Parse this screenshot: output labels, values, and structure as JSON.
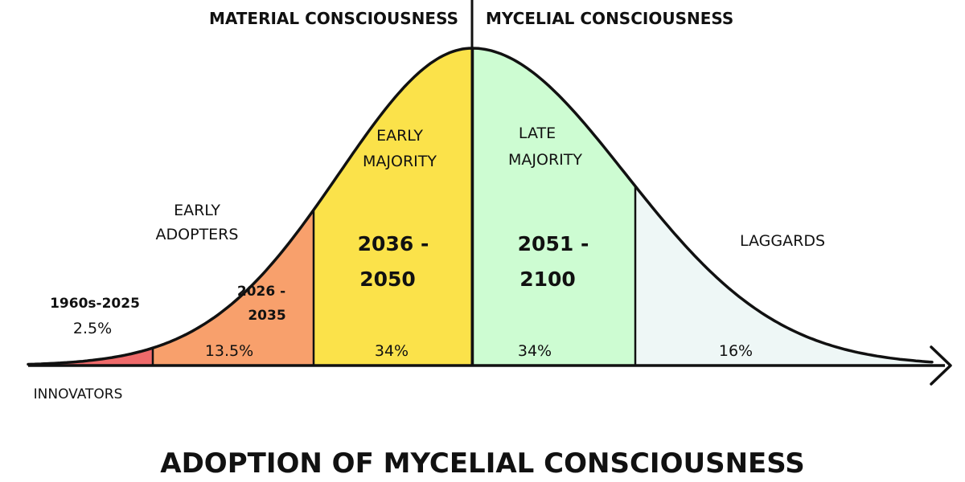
{
  "title": "ADOPTION OF MYCELIAL CONSCIOUSNESS",
  "divider": {
    "left_label": "MATERIAL CONSCIOUSNESS",
    "right_label": "MYCELIAL CONSCIOUSNESS"
  },
  "segments": [
    {
      "name": "INNOVATORS",
      "years": "1960s-2025",
      "percent": "2.5%",
      "value": 2.5,
      "color": "#ef6a6a"
    },
    {
      "name_line1": "EARLY",
      "name_line2": "ADOPTERS",
      "years_line1": "2026 -",
      "years_line2": "2035",
      "percent": "13.5%",
      "value": 13.5,
      "color": "#f8a06c"
    },
    {
      "name_line1": "EARLY",
      "name_line2": "MAJORITY",
      "years_line1": "2036 -",
      "years_line2": "2050",
      "percent": "34%",
      "value": 34,
      "color": "#fbe24a"
    },
    {
      "name_line1": "LATE",
      "name_line2": "MAJORITY",
      "years_line1": "2051 -",
      "years_line2": "2100",
      "percent": "34%",
      "value": 34,
      "color": "#cdfcd2"
    },
    {
      "name": "LAGGARDS",
      "percent": "16%",
      "value": 16,
      "color": "#eef7f6"
    }
  ]
}
